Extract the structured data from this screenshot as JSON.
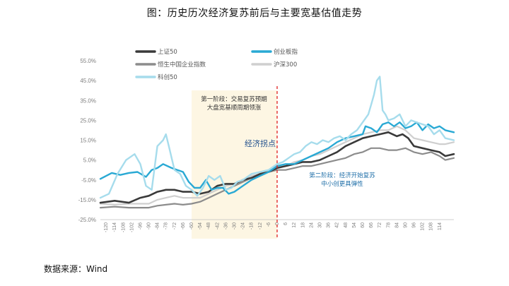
{
  "title": "图：历史历次经济复苏前后与主要宽基估值走势",
  "source": "数据来源：Wind",
  "chart_data": {
    "type": "line",
    "xlim": [
      -124,
      124
    ],
    "ylim": [
      -25,
      55
    ],
    "yticks": [
      55,
      45,
      35,
      25,
      15,
      5,
      -5,
      -15,
      -25
    ],
    "xticks": [
      -120,
      -114,
      -108,
      -102,
      -96,
      -90,
      -84,
      -78,
      -72,
      -66,
      -60,
      -54,
      -48,
      -42,
      -36,
      -30,
      -24,
      -18,
      -12,
      -6,
      0,
      6,
      12,
      18,
      24,
      30,
      36,
      42,
      48,
      54,
      60,
      66,
      72,
      78,
      84,
      90,
      96,
      102,
      108,
      114
    ],
    "legend_position": "top",
    "phase1": {
      "range": [
        -60,
        0
      ],
      "label_lines": [
        "第一阶段：交易复苏预期",
        "大盘宽基顺周期领涨"
      ],
      "color": "#fdf6e3"
    },
    "turning_point": {
      "x": 0,
      "label": "经济拐点"
    },
    "phase2": {
      "label_lines": [
        "第二阶段：经济开始复苏",
        "中小创更具弹性"
      ]
    },
    "series": [
      {
        "name": "上证50",
        "color": "#3a3a3a",
        "width": 2.6,
        "x": [
          -124,
          -114,
          -104,
          -96,
          -90,
          -84,
          -78,
          -72,
          -66,
          -60,
          -54,
          -48,
          -42,
          -36,
          -30,
          -24,
          -18,
          -12,
          -6,
          0,
          6,
          12,
          18,
          24,
          30,
          36,
          42,
          48,
          54,
          60,
          66,
          72,
          78,
          84,
          88,
          92,
          96,
          102,
          108,
          114,
          118,
          124
        ],
        "y": [
          -16.5,
          -15.5,
          -16.5,
          -14,
          -13,
          -11,
          -10,
          -10,
          -11,
          -11,
          -12,
          -11,
          -8,
          -7,
          -7,
          -5,
          -4,
          -2,
          -1,
          1,
          2,
          3,
          4,
          4,
          5,
          7,
          9,
          12,
          14,
          16,
          17,
          18,
          19,
          17,
          18,
          16,
          12,
          11,
          10,
          9,
          7,
          8
        ]
      },
      {
        "name": "创业板指",
        "color": "#29a9d4",
        "width": 2.4,
        "x": [
          -124,
          -116,
          -110,
          -104,
          -98,
          -92,
          -88,
          -84,
          -80,
          -74,
          -70,
          -66,
          -62,
          -58,
          -54,
          -50,
          -46,
          -42,
          -38,
          -34,
          -30,
          -24,
          -18,
          -12,
          -6,
          0,
          6,
          12,
          18,
          24,
          30,
          36,
          42,
          48,
          54,
          60,
          62,
          66,
          70,
          74,
          78,
          82,
          86,
          90,
          94,
          98,
          102,
          106,
          110,
          114,
          118,
          124
        ],
        "y": [
          -4.5,
          -1.5,
          -2.5,
          -1.5,
          -1,
          -3.5,
          0,
          1,
          3,
          1,
          0,
          -1,
          -6,
          -9,
          -9,
          -5,
          -10,
          -9,
          -9,
          -12,
          -11,
          -8,
          -5,
          -3,
          -1,
          2,
          3,
          3,
          5,
          7,
          9,
          11,
          14,
          16,
          17,
          18,
          22,
          21,
          19,
          23,
          24,
          22,
          24,
          21,
          22,
          24,
          20,
          23,
          21,
          22,
          20,
          19
        ]
      },
      {
        "name": "恒生中国企业指数",
        "color": "#8c8c8c",
        "width": 2.2,
        "x": [
          -124,
          -114,
          -104,
          -96,
          -90,
          -84,
          -78,
          -72,
          -66,
          -60,
          -54,
          -48,
          -42,
          -36,
          -30,
          -24,
          -18,
          -12,
          -6,
          0,
          6,
          12,
          18,
          24,
          30,
          36,
          42,
          48,
          54,
          60,
          66,
          72,
          78,
          84,
          90,
          96,
          102,
          108,
          114,
          118,
          124
        ],
        "y": [
          -19,
          -18.5,
          -19,
          -19,
          -19,
          -18,
          -17.5,
          -17,
          -17.5,
          -17,
          -16,
          -14,
          -12,
          -10,
          -8,
          -6,
          -4,
          -3,
          -1,
          0,
          0,
          1,
          2,
          2,
          3,
          4,
          5,
          6,
          8,
          9,
          11,
          11,
          10,
          10,
          11,
          9,
          8,
          9,
          7,
          5,
          6
        ]
      },
      {
        "name": "沪深300",
        "color": "#cfcfcf",
        "width": 2.2,
        "x": [
          -124,
          -114,
          -104,
          -96,
          -90,
          -84,
          -78,
          -72,
          -66,
          -60,
          -54,
          -48,
          -42,
          -36,
          -30,
          -24,
          -18,
          -12,
          -6,
          0,
          6,
          12,
          18,
          24,
          30,
          36,
          42,
          48,
          54,
          60,
          66,
          72,
          78,
          84,
          90,
          96,
          102,
          108,
          114,
          118,
          124
        ],
        "y": [
          -17,
          -17.5,
          -17,
          -17,
          -17,
          -15,
          -14,
          -13,
          -14,
          -14,
          -14,
          -12,
          -10,
          -8,
          -7,
          -5,
          -3,
          -2,
          -1,
          1,
          2,
          4,
          5,
          7,
          8,
          10,
          12,
          14,
          16,
          18,
          19,
          20,
          20,
          22,
          20,
          16,
          15,
          14,
          13,
          13,
          14
        ]
      },
      {
        "name": "科创50",
        "color": "#a6dcec",
        "width": 2.4,
        "x": [
          -124,
          -118,
          -112,
          -106,
          -100,
          -96,
          -92,
          -88,
          -84,
          -80,
          -78,
          -76,
          -72,
          -68,
          -64,
          -60,
          -56,
          -52,
          -48,
          -44,
          -40,
          -36,
          -32,
          -28,
          -24,
          -18,
          -12,
          -6,
          0,
          4,
          8,
          12,
          16,
          20,
          24,
          28,
          32,
          36,
          40,
          44,
          48,
          52,
          56,
          60,
          64,
          66,
          68,
          70,
          72,
          74,
          76,
          78,
          82,
          86,
          90,
          94,
          98,
          102,
          106,
          110,
          114,
          118,
          124
        ],
        "y": [
          -14,
          -12,
          -2,
          5,
          8,
          3,
          -8,
          -10,
          12,
          15,
          18,
          12,
          0,
          -2,
          -8,
          -10,
          -13,
          -9,
          -3,
          -5,
          -3,
          -10,
          -9,
          -6,
          -5,
          -2,
          -1,
          0,
          3,
          4,
          6,
          8,
          9,
          12,
          14,
          13,
          15,
          14,
          16,
          17,
          15,
          18,
          20,
          24,
          28,
          33,
          38,
          45,
          47,
          30,
          28,
          25,
          26,
          28,
          22,
          25,
          24,
          23,
          22,
          18,
          20,
          16,
          15
        ]
      }
    ]
  }
}
